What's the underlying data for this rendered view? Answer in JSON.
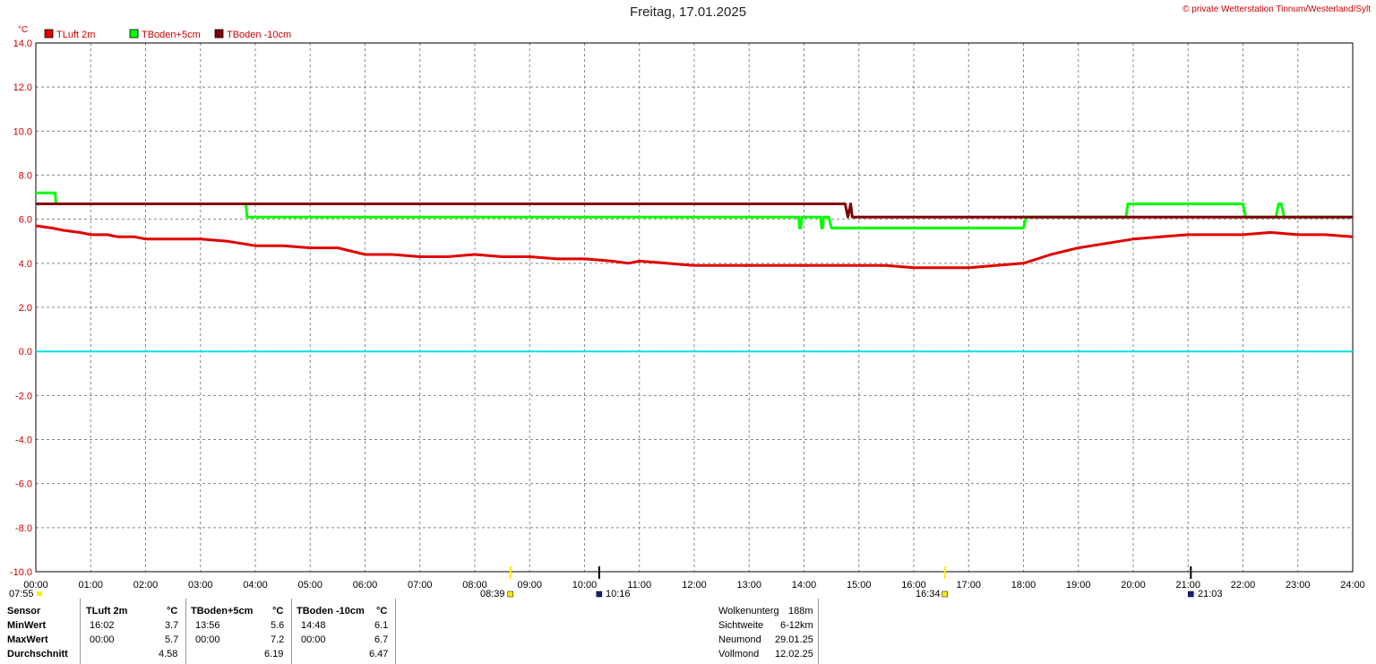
{
  "title": "Freitag, 17.01.2025",
  "copyright": "© private Wetterstation Tinnum/Westerland/Sylt",
  "colors": {
    "tluft": "#e00000",
    "tboden5": "#00ff00",
    "tboden10": "#800000",
    "zero": "#00e0e0",
    "grid": "#888888"
  },
  "chart_data": {
    "type": "line",
    "yunit": "°C",
    "ylim": [
      -10.0,
      14.0
    ],
    "yticks": [
      "14.0",
      "12.0",
      "10.0",
      "8.0",
      "6.0",
      "4.0",
      "2.0",
      "0.0",
      "-2.0",
      "-4.0",
      "-6.0",
      "-8.0",
      "-10.0"
    ],
    "xlim": [
      0,
      24
    ],
    "xticks": [
      "00:00",
      "01:00",
      "02:00",
      "03:00",
      "04:00",
      "05:00",
      "06:00",
      "07:00",
      "08:00",
      "09:00",
      "10:00",
      "11:00",
      "12:00",
      "13:00",
      "14:00",
      "15:00",
      "16:00",
      "17:00",
      "18:00",
      "19:00",
      "20:00",
      "21:00",
      "22:00",
      "23:00",
      "24:00"
    ],
    "grid": true,
    "legend_position": "top-left",
    "series": [
      {
        "name": "TLuft 2m",
        "color": "#e00000",
        "x": [
          0,
          0.3,
          0.5,
          0.8,
          1.0,
          1.3,
          1.5,
          1.8,
          2.0,
          2.5,
          3.0,
          3.5,
          4.0,
          4.5,
          5.0,
          5.5,
          6.0,
          6.5,
          7.0,
          7.5,
          8.0,
          8.5,
          9.0,
          9.5,
          10.0,
          10.5,
          10.8,
          11.0,
          11.5,
          12.0,
          12.5,
          13.0,
          13.5,
          14.0,
          14.5,
          15.0,
          15.5,
          16.0,
          16.5,
          17.0,
          17.5,
          18.0,
          18.5,
          19.0,
          19.5,
          20.0,
          20.5,
          21.0,
          21.5,
          22.0,
          22.5,
          23.0,
          23.5,
          24.0
        ],
        "y": [
          5.7,
          5.6,
          5.5,
          5.4,
          5.3,
          5.3,
          5.2,
          5.2,
          5.1,
          5.1,
          5.1,
          5.0,
          4.8,
          4.8,
          4.7,
          4.7,
          4.4,
          4.4,
          4.3,
          4.3,
          4.4,
          4.3,
          4.3,
          4.2,
          4.2,
          4.1,
          4.0,
          4.1,
          4.0,
          3.9,
          3.9,
          3.9,
          3.9,
          3.9,
          3.9,
          3.9,
          3.9,
          3.8,
          3.8,
          3.8,
          3.9,
          4.0,
          4.4,
          4.7,
          4.9,
          5.1,
          5.2,
          5.3,
          5.3,
          5.3,
          5.4,
          5.3,
          5.3,
          5.2
        ]
      },
      {
        "name": "TBoden+5cm",
        "color": "#00ff00",
        "x": [
          0,
          0.35,
          0.37,
          3.83,
          3.85,
          13.9,
          13.92,
          13.94,
          13.96,
          14.3,
          14.32,
          14.34,
          14.36,
          14.45,
          14.5,
          18.0,
          18.05,
          19.87,
          19.9,
          22.0,
          22.05,
          22.6,
          22.65,
          22.7,
          22.75,
          24.0
        ],
        "y": [
          7.2,
          7.2,
          6.7,
          6.7,
          6.1,
          6.1,
          5.6,
          5.6,
          6.1,
          6.1,
          5.6,
          5.6,
          6.1,
          6.1,
          5.6,
          5.6,
          6.1,
          6.1,
          6.7,
          6.7,
          6.1,
          6.1,
          6.7,
          6.7,
          6.1,
          6.1
        ]
      },
      {
        "name": "TBoden -10cm",
        "color": "#800000",
        "x": [
          0,
          14.75,
          14.8,
          14.85,
          14.88,
          14.92,
          24.0
        ],
        "y": [
          6.7,
          6.7,
          6.1,
          6.7,
          6.1,
          6.1,
          6.1
        ]
      },
      {
        "name": "",
        "color": "#00e0e0",
        "x": [
          0,
          24
        ],
        "y": [
          0.0,
          0.0
        ]
      }
    ],
    "day_events": [
      {
        "time": "07:55",
        "hour": 7.9167,
        "kind": "sun-tick"
      },
      {
        "time": "08:39",
        "hour": 8.65,
        "kind": "sun-marker"
      },
      {
        "time": "10:16",
        "hour": 10.267,
        "kind": "moon-marker"
      },
      {
        "time": "16:34",
        "hour": 16.567,
        "kind": "sun-marker"
      },
      {
        "time": "21:03",
        "hour": 21.05,
        "kind": "moon-marker"
      }
    ]
  },
  "event_labels": {
    "e1": "07:55",
    "e2": "08:39",
    "e3": "10:16",
    "e4": "16:34",
    "e5": "21:03"
  },
  "stats": {
    "row_labels": [
      "Sensor",
      "MinWert",
      "MaxWert",
      "Durchschnitt"
    ],
    "tluft": {
      "header": "TLuft 2m",
      "unit": "°C",
      "min_time": "16:02",
      "min": "3.7",
      "max_time": "00:00",
      "max": "5.7",
      "avg": "4.58"
    },
    "tboden5": {
      "header": "TBoden+5cm",
      "unit": "°C",
      "min_time": "13:56",
      "min": "5.6",
      "max_time": "00:00",
      "max": "7.2",
      "avg": "6.19"
    },
    "tboden10": {
      "header": "TBoden -10cm",
      "unit": "°C",
      "min_time": "14:48",
      "min": "6.1",
      "max_time": "00:00",
      "max": "6.7",
      "avg": "6.47"
    }
  },
  "extra": {
    "labels": [
      "Wolkenunterg",
      "Sichtweite",
      "Neumond",
      "Vollmond"
    ],
    "values": [
      "188m",
      "6-12km",
      "29.01.25",
      "12.02.25"
    ]
  }
}
